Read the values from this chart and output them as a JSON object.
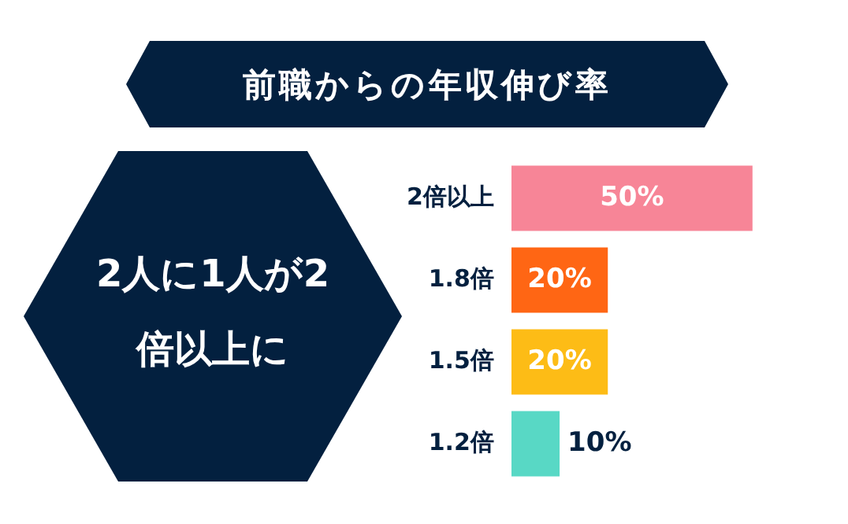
{
  "chart_data": {
    "type": "bar",
    "orientation": "horizontal",
    "title": "前職からの年収伸び率",
    "annotations": [
      "2人に1人が2倍以上に"
    ],
    "categories": [
      "2倍以上",
      "1.8倍",
      "1.5倍",
      "1.2倍"
    ],
    "values": [
      50,
      20,
      20,
      10
    ],
    "colors": [
      "#f78597",
      "#ff6614",
      "#fdbc16",
      "#58d8c5"
    ],
    "value_labels": [
      "50%",
      "20%",
      "20%",
      "10%"
    ],
    "tick_labels": "y"
  }
}
